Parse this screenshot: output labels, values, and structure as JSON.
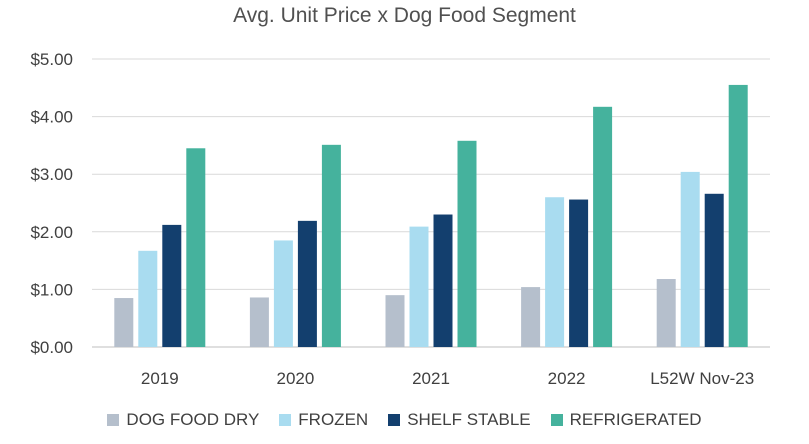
{
  "chart_data": {
    "type": "bar",
    "title": "Avg. Unit Price x Dog Food Segment",
    "xlabel": "",
    "ylabel": "",
    "categories": [
      "2019",
      "2020",
      "2021",
      "2022",
      "L52W Nov-23"
    ],
    "ylim": [
      0,
      5
    ],
    "yticks": [
      0,
      1,
      2,
      3,
      4,
      5
    ],
    "ytick_labels": [
      "$0.00",
      "$1.00",
      "$2.00",
      "$3.00",
      "$4.00",
      "$5.00"
    ],
    "grid": true,
    "legend_position": "bottom",
    "series": [
      {
        "name": "DOG FOOD DRY",
        "color": "#b5bfcc",
        "values": [
          0.85,
          0.86,
          0.9,
          1.04,
          1.18
        ]
      },
      {
        "name": "FROZEN",
        "color": "#a9dcf0",
        "values": [
          1.67,
          1.85,
          2.09,
          2.6,
          3.04
        ]
      },
      {
        "name": "SHELF STABLE",
        "color": "#133f6e",
        "values": [
          2.12,
          2.19,
          2.3,
          2.56,
          2.66
        ]
      },
      {
        "name": "REFRIGERATED",
        "color": "#45b29d",
        "values": [
          3.45,
          3.51,
          3.58,
          4.17,
          4.55
        ]
      }
    ]
  }
}
